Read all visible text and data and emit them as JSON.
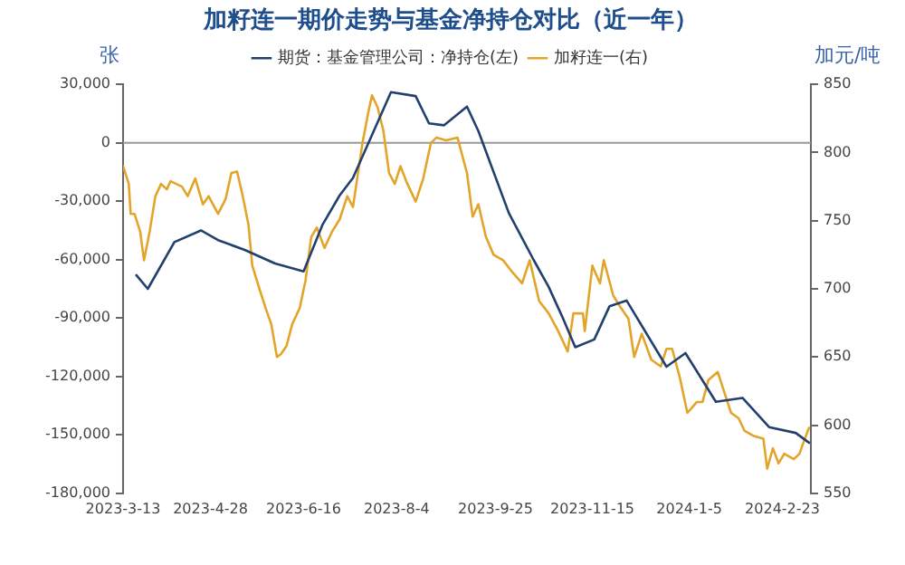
{
  "chart_data": {
    "type": "line",
    "title": "加籽连一期价走势与基金净持仓对比（近一年）",
    "ylabel": "张",
    "y2label": "加元/吨",
    "xlim": [
      "2023-03-13",
      "2024-03-09"
    ],
    "xticks": [
      {
        "value": "2023-03-13",
        "label": "2023-3-13"
      },
      {
        "value": "2023-04-28",
        "label": "2023-4-28"
      },
      {
        "value": "2023-06-16",
        "label": "2023-6-16"
      },
      {
        "value": "2023-08-04",
        "label": "2023-8-4"
      },
      {
        "value": "2023-09-25",
        "label": "2023-9-25"
      },
      {
        "value": "2023-11-15",
        "label": "2023-11-15"
      },
      {
        "value": "2024-01-05",
        "label": "2024-1-5"
      },
      {
        "value": "2024-02-23",
        "label": "2024-2-23"
      }
    ],
    "ylim": [
      -180000,
      30000
    ],
    "yticks": [
      {
        "value": -180000,
        "label": "-180,000"
      },
      {
        "value": -150000,
        "label": "-150,000"
      },
      {
        "value": -120000,
        "label": "-120,000"
      },
      {
        "value": -90000,
        "label": "-90,000"
      },
      {
        "value": -60000,
        "label": "-60,000"
      },
      {
        "value": -30000,
        "label": "-30,000"
      },
      0,
      {
        "value": 30000,
        "label": "30,000"
      }
    ],
    "y2lim": [
      550,
      850
    ],
    "y2ticks": [
      550,
      600,
      650,
      700,
      750,
      800,
      850
    ],
    "ref_lines": [
      {
        "axis": "y",
        "value": 0,
        "color": "#999999"
      }
    ],
    "grid": false,
    "legend": "top",
    "marker": "none",
    "line_style": "solid",
    "series": [
      {
        "name": "期货：基金管理公司：净持仓(左)",
        "color": "#22406e",
        "x": [
          "2023-03-20",
          "2023-03-26",
          "2023-04-09",
          "2023-04-23",
          "2023-05-02",
          "2023-05-16",
          "2023-06-01",
          "2023-06-16",
          "2023-06-26",
          "2023-07-05",
          "2023-07-12",
          "2023-08-01",
          "2023-08-14",
          "2023-08-21",
          "2023-08-29",
          "2023-09-10",
          "2023-09-16",
          "2023-10-02",
          "2023-10-15",
          "2023-10-23",
          "2023-10-30",
          "2023-11-06",
          "2023-11-16",
          "2023-11-24",
          "2023-12-03",
          "2023-12-24",
          "2024-01-03",
          "2024-01-19",
          "2024-02-02",
          "2024-02-16",
          "2024-03-01",
          "2024-03-08"
        ],
        "values": [
          -68000,
          -75000,
          -51000,
          -45000,
          -50000,
          -55000,
          -62000,
          -66000,
          -42000,
          -27000,
          -18000,
          26000,
          24000,
          10000,
          9000,
          18600,
          6000,
          -36000,
          -60000,
          -74000,
          -89000,
          -105000,
          -101000,
          -84000,
          -81000,
          -115000,
          -108000,
          -133000,
          -131000,
          -146000,
          -149000,
          -154000
        ]
      },
      {
        "name": "加籽连一(右)",
        "color": "#e3a42a",
        "axis": "y2",
        "x": [
          "2023-03-13",
          "2023-03-16",
          "2023-03-17",
          "2023-03-19",
          "2023-03-22",
          "2023-03-24",
          "2023-03-27",
          "2023-03-30",
          "2023-04-02",
          "2023-04-05",
          "2023-04-07",
          "2023-04-13",
          "2023-04-16",
          "2023-04-20",
          "2023-04-24",
          "2023-04-27",
          "2023-05-02",
          "2023-05-06",
          "2023-05-09",
          "2023-05-12",
          "2023-05-15",
          "2023-05-18",
          "2023-05-20",
          "2023-05-24",
          "2023-05-27",
          "2023-05-30",
          "2023-06-02",
          "2023-06-04",
          "2023-06-07",
          "2023-06-10",
          "2023-06-14",
          "2023-06-17",
          "2023-06-20",
          "2023-06-23",
          "2023-06-27",
          "2023-07-01",
          "2023-07-05",
          "2023-07-09",
          "2023-07-12",
          "2023-07-17",
          "2023-07-20",
          "2023-07-22",
          "2023-07-25",
          "2023-07-28",
          "2023-07-31",
          "2023-08-03",
          "2023-08-06",
          "2023-08-09",
          "2023-08-14",
          "2023-08-18",
          "2023-08-22",
          "2023-08-25",
          "2023-08-30",
          "2023-09-05",
          "2023-09-10",
          "2023-09-13",
          "2023-09-16",
          "2023-09-20",
          "2023-09-24",
          "2023-09-29",
          "2023-10-04",
          "2023-10-09",
          "2023-10-13",
          "2023-10-18",
          "2023-10-23",
          "2023-10-28",
          "2023-11-02",
          "2023-11-05",
          "2023-11-10",
          "2023-11-11",
          "2023-11-15",
          "2023-11-19",
          "2023-11-21",
          "2023-11-26",
          "2023-11-30",
          "2023-12-04",
          "2023-12-07",
          "2023-12-11",
          "2023-12-16",
          "2023-12-21",
          "2023-12-24",
          "2023-12-27",
          "2023-12-31",
          "2024-01-04",
          "2024-01-09",
          "2024-01-12",
          "2024-01-15",
          "2024-01-20",
          "2024-01-23",
          "2024-01-27",
          "2024-01-31",
          "2024-02-03",
          "2024-02-08",
          "2024-02-13",
          "2024-02-15",
          "2024-02-18",
          "2024-02-21",
          "2024-02-24",
          "2024-02-29",
          "2024-03-03",
          "2024-03-05",
          "2024-03-08"
        ],
        "values": [
          790,
          777,
          755,
          755,
          742,
          721,
          742,
          768,
          777,
          773,
          779,
          775,
          768,
          781,
          762,
          768,
          755,
          766,
          785,
          786,
          768,
          747,
          717,
          699,
          686,
          674,
          650,
          652,
          658,
          674,
          686,
          706,
          738,
          745,
          730,
          742,
          751,
          768,
          760,
          807,
          829,
          842,
          833,
          816,
          785,
          777,
          790,
          779,
          764,
          781,
          807,
          811,
          809,
          811,
          785,
          753,
          762,
          738,
          725,
          721,
          712,
          704,
          721,
          691,
          682,
          669,
          654,
          682,
          682,
          669,
          717,
          704,
          721,
          695,
          686,
          678,
          650,
          667,
          648,
          643,
          656,
          656,
          635,
          609,
          617,
          617,
          633,
          639,
          626,
          609,
          605,
          596,
          592,
          590,
          568,
          583,
          572,
          579,
          575,
          579,
          587,
          598
        ]
      }
    ]
  }
}
